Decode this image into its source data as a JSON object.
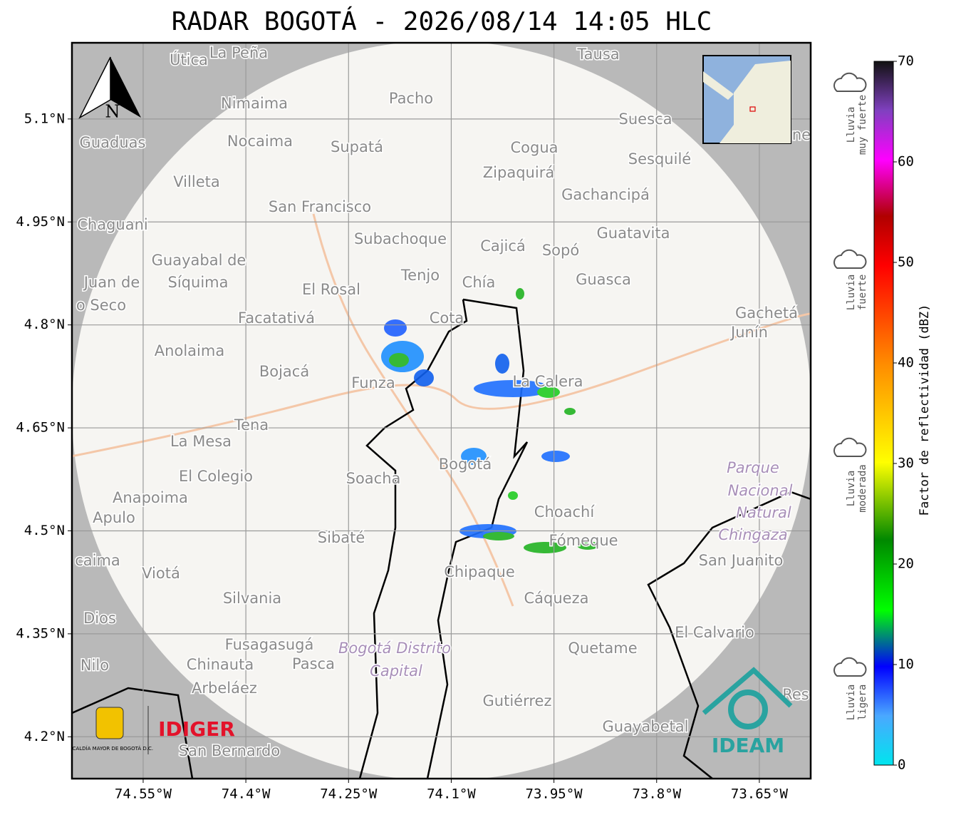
{
  "title": "RADAR BOGOTÁ - 2026/08/14 14:05 HLC",
  "map": {
    "xlim": [
      -74.654,
      -73.575
    ],
    "ylim": [
      4.139,
      5.211
    ],
    "xticks": [
      {
        "value": -74.55,
        "label": "74.55°W"
      },
      {
        "value": -74.4,
        "label": "74.4°W"
      },
      {
        "value": -74.25,
        "label": "74.25°W"
      },
      {
        "value": -74.1,
        "label": "74.1°W"
      },
      {
        "value": -73.95,
        "label": "73.95°W"
      },
      {
        "value": -73.8,
        "label": "73.8°W"
      },
      {
        "value": -73.65,
        "label": "73.65°W"
      }
    ],
    "yticks": [
      {
        "value": 5.1,
        "label": "5.1°N"
      },
      {
        "value": 4.95,
        "label": "4.95°N"
      },
      {
        "value": 4.8,
        "label": "4.8°N"
      },
      {
        "value": 4.65,
        "label": "4.65°N"
      },
      {
        "value": 4.5,
        "label": "4.5°N"
      },
      {
        "value": 4.35,
        "label": "4.35°N"
      },
      {
        "value": 4.2,
        "label": "4.2°N"
      }
    ],
    "north": "N",
    "places": [
      "Útica",
      "La Peña",
      "Tausa",
      "Pacho",
      "Nimaima",
      "Guaduas",
      "Nocaima",
      "Supatá",
      "Cogua",
      "Suesca",
      "Sesquilé",
      "Zipaquirá",
      "Villeta",
      "Gachancipá",
      "San Francisco",
      "Chaguani",
      "Guatavita",
      "Subachoque",
      "Cajicá",
      "Sopó",
      "Guayabal de",
      "Síquima",
      "Juan de",
      "o Seco",
      "Tenjo",
      "Chía",
      "Guasca",
      "El Rosal",
      "Facatativá",
      "Cota",
      "Gachetá",
      "Junín",
      "Anolaima",
      "Bojacá",
      "Funza",
      "La Calera",
      "Tena",
      "La Mesa",
      "Bogotá",
      "El Colegio",
      "Soacha",
      "Anapoima",
      "Apulo",
      "Choachí",
      "Sibaté",
      "Fómeque",
      "San Juanito",
      "caima",
      "Viotá",
      "Chipaque",
      "Silvania",
      "Cáqueza",
      "Dios",
      "El Calvario",
      "Fusagasugá",
      "Quetame",
      "Nilo",
      "Chinauta",
      "Pasca",
      "Arbeláez",
      "Gutiérrez",
      "Res",
      "Guayabetal",
      "San Bernardo",
      "ne"
    ],
    "parks": [
      "Parque",
      "Nacional",
      "Natural",
      "Chingaza",
      "Bogotá Distrito",
      "Capital"
    ],
    "logos": {
      "alcaldia": "ALCALDÍA MAYOR DE BOGOTÁ D.C.",
      "idiger": "IDIGER",
      "ideam": "IDEAM"
    }
  },
  "colorbar": {
    "label": "Factor de reflectividad (dBZ)",
    "lim": [
      0,
      70
    ],
    "ticks": [
      0,
      10,
      20,
      30,
      40,
      50,
      60,
      70
    ],
    "legend": [
      [
        "Lluvia",
        "muy fuerte"
      ],
      [
        "Lluvia",
        "fuerte"
      ],
      [
        "Lluvia",
        "moderada"
      ],
      [
        "Lluvia",
        "ligera"
      ]
    ]
  }
}
